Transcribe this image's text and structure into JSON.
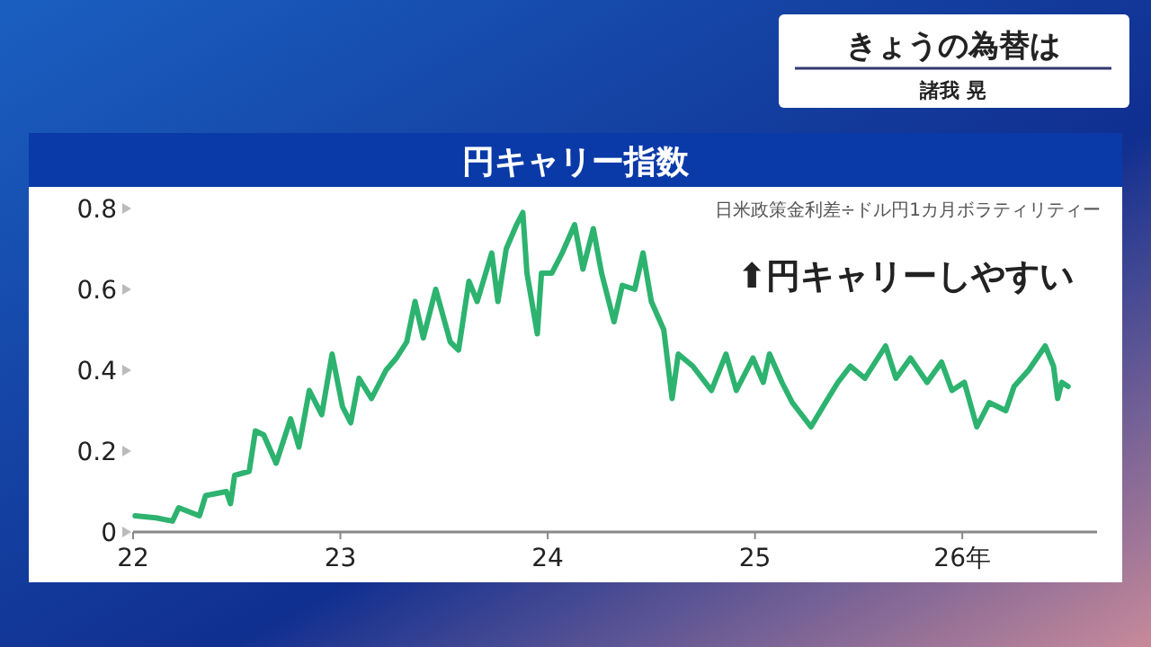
{
  "chart_data": {
    "type": "line",
    "title": "円キャリー指数",
    "subtitle": "日米政策金利差÷ドル円1カ月ボラティリティー",
    "annotations": [
      "⬆円キャリーしやすい",
      "きょうの為替は",
      "諸我 晃"
    ],
    "x": [
      22.01,
      22.11,
      22.19,
      22.22,
      22.32,
      22.35,
      22.45,
      22.47,
      22.49,
      22.56,
      22.59,
      22.63,
      22.69,
      22.76,
      22.8,
      22.85,
      22.91,
      22.96,
      23.01,
      23.05,
      23.09,
      23.15,
      23.22,
      23.27,
      23.32,
      23.36,
      23.4,
      23.46,
      23.53,
      23.57,
      23.62,
      23.66,
      23.73,
      23.76,
      23.8,
      23.85,
      23.88,
      23.9,
      23.95,
      23.97,
      24.02,
      24.07,
      24.13,
      24.17,
      24.22,
      24.26,
      24.32,
      24.36,
      24.42,
      24.46,
      24.5,
      24.56,
      24.6,
      24.63,
      24.7,
      24.79,
      24.86,
      24.91,
      24.99,
      25.04,
      25.07,
      25.13,
      25.18,
      25.27,
      25.34,
      25.4,
      25.46,
      25.53,
      25.63,
      25.68,
      25.75,
      25.83,
      25.9,
      25.95,
      26.01,
      26.07,
      26.13,
      26.21,
      26.25,
      26.32,
      26.4,
      26.44,
      26.46,
      26.48,
      26.51
    ],
    "series": [
      {
        "color": "#2db36f",
        "values": [
          0.04,
          0.035,
          0.027,
          0.06,
          0.04,
          0.09,
          0.1,
          0.07,
          0.14,
          0.15,
          0.25,
          0.24,
          0.17,
          0.28,
          0.21,
          0.35,
          0.29,
          0.44,
          0.31,
          0.27,
          0.38,
          0.33,
          0.4,
          0.43,
          0.47,
          0.57,
          0.48,
          0.6,
          0.47,
          0.45,
          0.62,
          0.57,
          0.69,
          0.57,
          0.7,
          0.76,
          0.79,
          0.64,
          0.49,
          0.64,
          0.64,
          0.69,
          0.76,
          0.65,
          0.75,
          0.64,
          0.52,
          0.61,
          0.6,
          0.69,
          0.57,
          0.5,
          0.33,
          0.44,
          0.41,
          0.35,
          0.44,
          0.35,
          0.43,
          0.37,
          0.44,
          0.37,
          0.32,
          0.26,
          0.32,
          0.37,
          0.41,
          0.38,
          0.46,
          0.38,
          0.43,
          0.37,
          0.42,
          0.35,
          0.37,
          0.26,
          0.32,
          0.3,
          0.36,
          0.4,
          0.46,
          0.41,
          0.33,
          0.37,
          0.36
        ]
      }
    ],
    "xlim": [
      22,
      26.65
    ],
    "xticks": [
      22,
      23,
      24,
      25,
      {
        "value": 26,
        "label": "26年"
      }
    ],
    "ylim": [
      0,
      0.8
    ],
    "yticks": [
      0,
      0.2,
      0.4,
      0.6,
      0.8
    ]
  }
}
